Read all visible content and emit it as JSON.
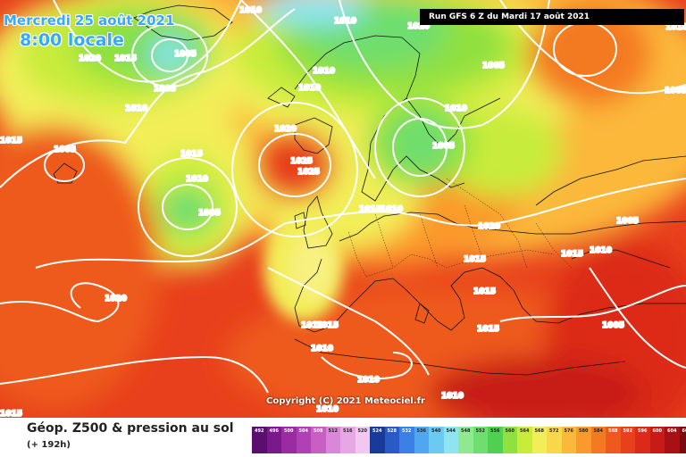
{
  "overlay": {
    "date_line": "Mercredi 25 août 2021",
    "time_line": "8:00 locale",
    "run_info": "Run GFS 6 Z du Mardi 17 août 2021",
    "copyright": "Copyright (C) 2021 Meteociel.fr"
  },
  "footer": {
    "title": "Géop. Z500 & pression au sol",
    "subtitle": "(+ 192h)"
  },
  "legend": {
    "values": [
      "492",
      "496",
      "500",
      "504",
      "508",
      "512",
      "516",
      "520",
      "524",
      "528",
      "532",
      "536",
      "540",
      "544",
      "548",
      "552",
      "556",
      "560",
      "564",
      "568",
      "572",
      "576",
      "580",
      "584",
      "588",
      "592",
      "596",
      "600",
      "604",
      "608",
      "612"
    ],
    "colors": [
      "#5a0f6e",
      "#7a1a8a",
      "#9a2ba0",
      "#b040b6",
      "#c860c4",
      "#d888d6",
      "#e6a8e4",
      "#f2c8f0",
      "#1a3a9a",
      "#2a5ac8",
      "#3a80e6",
      "#50a6f0",
      "#6ccaf2",
      "#8ee4f0",
      "#90e890",
      "#6ede6e",
      "#50d050",
      "#90e040",
      "#c8ec3a",
      "#f2ee58",
      "#f8d84a",
      "#fbb83a",
      "#fb9a2c",
      "#f47a22",
      "#ee5a1e",
      "#e8401c",
      "#dc2a18",
      "#c81a16",
      "#a81014",
      "#7a0a10",
      "#4a0408"
    ],
    "text_colors": [
      "#fff",
      "#fff",
      "#fff",
      "#fff",
      "#fff",
      "#222",
      "#222",
      "#222",
      "#fff",
      "#fff",
      "#fff",
      "#222",
      "#222",
      "#222",
      "#222",
      "#222",
      "#222",
      "#222",
      "#222",
      "#222",
      "#222",
      "#222",
      "#222",
      "#222",
      "#fff",
      "#fff",
      "#fff",
      "#fff",
      "#fff",
      "#fff",
      "#fff"
    ]
  },
  "isobar_labels": [
    "1010",
    "1010",
    "1020",
    "1020",
    "1015",
    "1005",
    "1005",
    "1010",
    "1010",
    "1010",
    "1010",
    "1005",
    "1005",
    "1015",
    "1005",
    "1010",
    "1015",
    "1020",
    "1025",
    "1025",
    "1010",
    "1005",
    "1005",
    "1015",
    "1010",
    "1020",
    "1015",
    "1015",
    "1010",
    "1015",
    "1010",
    "1015",
    "1005",
    "1020",
    "1010",
    "1010",
    "1015",
    "1010",
    "1010",
    "1015",
    "1005"
  ],
  "pressure_systems": {
    "highs": [
      "1025"
    ],
    "lows": [
      "1005",
      "1005",
      "1005",
      "1005",
      "1005",
      "1000"
    ]
  }
}
